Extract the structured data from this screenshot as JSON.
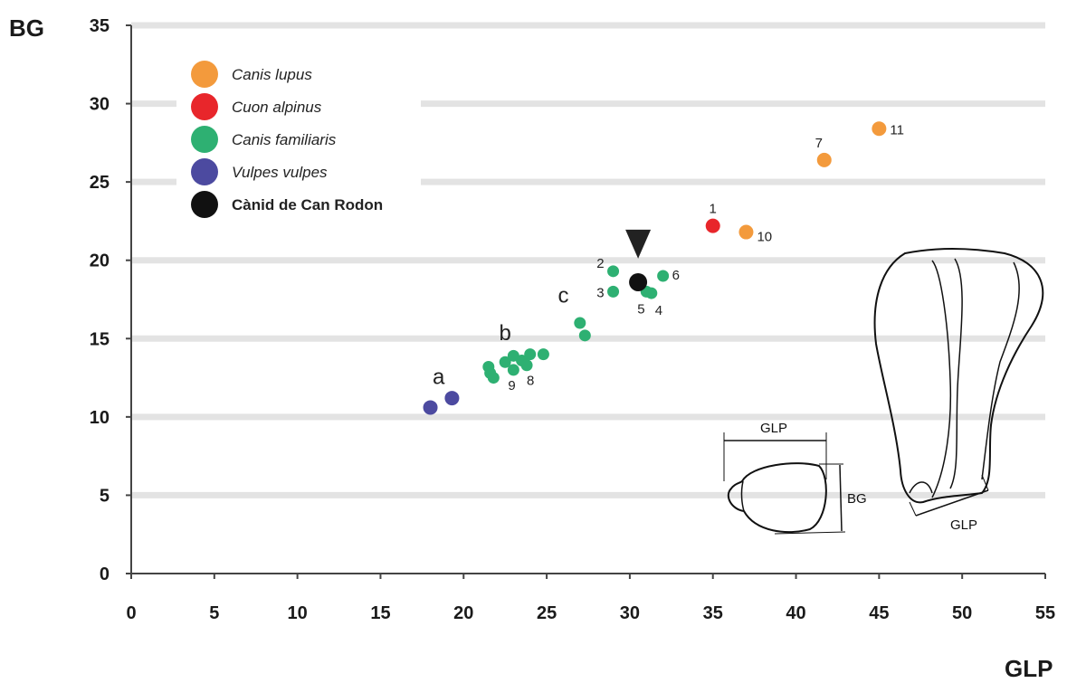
{
  "chart_data": {
    "type": "scatter",
    "xlabel": "GLP",
    "ylabel": "BG",
    "xlim": [
      0,
      55
    ],
    "ylim": [
      0,
      35
    ],
    "x_ticks": [
      "0",
      "5",
      "10",
      "15",
      "20",
      "25",
      "30",
      "35",
      "40",
      "45",
      "50",
      "55"
    ],
    "y_ticks": [
      "0",
      "5",
      "10",
      "15",
      "20",
      "25",
      "30",
      "35"
    ],
    "grid": "horizontal",
    "legend_position": "top-left",
    "series": [
      {
        "name": "Canis lupus",
        "color": "#f39a3c",
        "points": [
          {
            "x": 41.7,
            "y": 26.4,
            "label": "7"
          },
          {
            "x": 45.0,
            "y": 28.4,
            "label": "11"
          },
          {
            "x": 37.0,
            "y": 21.8,
            "label": "10"
          }
        ]
      },
      {
        "name": "Cuon alpinus",
        "color": "#e8262b",
        "points": [
          {
            "x": 35.0,
            "y": 22.2,
            "label": "1"
          }
        ]
      },
      {
        "name": "Canis familiaris",
        "color": "#2eb072",
        "points": [
          {
            "x": 29.0,
            "y": 19.3,
            "label": "2"
          },
          {
            "x": 29.0,
            "y": 18.0,
            "label": "3"
          },
          {
            "x": 32.0,
            "y": 19.0,
            "label": "6"
          },
          {
            "x": 31.0,
            "y": 18.0,
            "label": "5"
          },
          {
            "x": 31.3,
            "y": 17.9,
            "label": "4"
          },
          {
            "x": 27.0,
            "y": 16.0,
            "label": ""
          },
          {
            "x": 27.3,
            "y": 15.2,
            "label": ""
          },
          {
            "x": 21.5,
            "y": 13.2,
            "label": ""
          },
          {
            "x": 21.6,
            "y": 12.8,
            "label": ""
          },
          {
            "x": 21.8,
            "y": 12.5,
            "label": ""
          },
          {
            "x": 22.5,
            "y": 13.5,
            "label": ""
          },
          {
            "x": 23.0,
            "y": 13.9,
            "label": ""
          },
          {
            "x": 23.0,
            "y": 13.0,
            "label": "9"
          },
          {
            "x": 23.5,
            "y": 13.6,
            "label": ""
          },
          {
            "x": 23.8,
            "y": 13.3,
            "label": "8"
          },
          {
            "x": 24.0,
            "y": 14.0,
            "label": ""
          },
          {
            "x": 24.8,
            "y": 14.0,
            "label": ""
          }
        ]
      },
      {
        "name": "Vulpes vulpes",
        "color": "#4c4aa0",
        "points": [
          {
            "x": 18.0,
            "y": 10.6,
            "label": ""
          },
          {
            "x": 19.3,
            "y": 11.2,
            "label": ""
          }
        ]
      },
      {
        "name": "Cànid de Can Rodon",
        "color": "#111111",
        "points": [
          {
            "x": 30.5,
            "y": 18.6,
            "label": ""
          }
        ]
      }
    ],
    "group_labels": [
      {
        "text": "a",
        "x": 18.5,
        "y": 12.1
      },
      {
        "text": "b",
        "x": 22.5,
        "y": 14.9
      },
      {
        "text": "c",
        "x": 26.0,
        "y": 17.3
      }
    ],
    "marker": {
      "type": "down-triangle",
      "x": 30.5,
      "y": 20.8,
      "color": "#222222"
    },
    "inset": {
      "labels": {
        "glp_top": "GLP",
        "bg_side": "BG",
        "glp_bottom": "GLP"
      }
    }
  }
}
